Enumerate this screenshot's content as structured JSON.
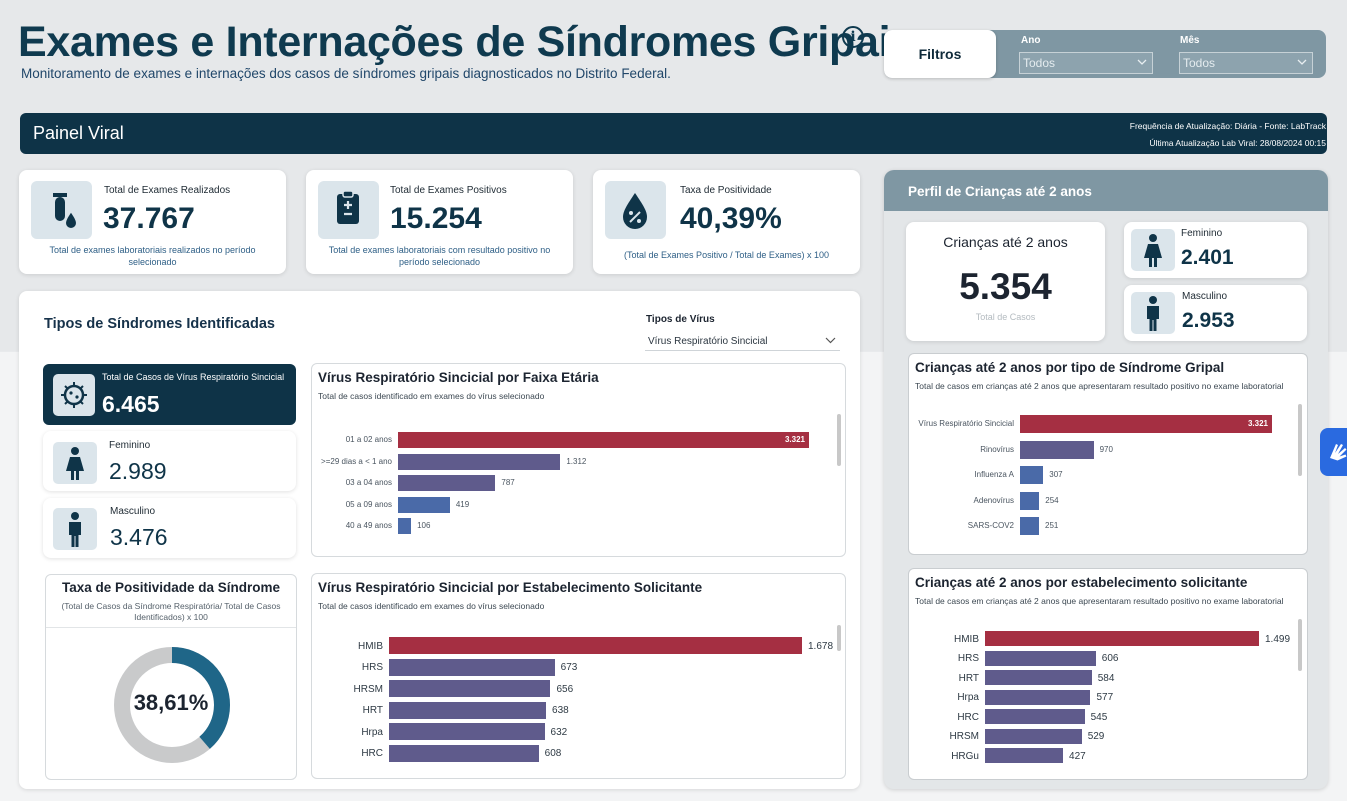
{
  "header": {
    "title": "Exames e Internações de Síndromes Gripais",
    "info_icon": "i",
    "subtitle": "Monitoramento de exames e internações dos casos de síndromes gripais diagnosticados no Distrito Federal."
  },
  "filters": {
    "button_label": "Filtros",
    "ano_label": "Ano",
    "ano_value": "Todos",
    "mes_label": "Mês",
    "mes_value": "Todos"
  },
  "banner": {
    "title": "Painel Viral",
    "line1": "Frequência de Atualização: Diária - Fonte: LabTrack",
    "line2": "Última Atualização Lab Viral: 28/08/2024 00:15"
  },
  "kpis": [
    {
      "label": "Total de Exames Realizados",
      "value": "37.767",
      "desc": "Total de exames laboratoriais realizados no período selecionado",
      "icon": "test-tube-drop-icon"
    },
    {
      "label": "Total de Exames Positivos",
      "value": "15.254",
      "desc": "Total de exames laboratoriais com resultado positivo no período selecionado",
      "icon": "clipboard-plus-minus-icon"
    },
    {
      "label": "Taxa de Positividade",
      "value": "40,39%",
      "desc": "(Total de Exames Positivo / Total de Exames) x 100",
      "icon": "percent-drop-icon"
    }
  ],
  "syndromes": {
    "title": "Tipos de Síndromes Identificadas",
    "virus_filter_label": "Tipos de Vírus",
    "virus_filter_value": "Vírus Respiratório Sincicial",
    "total_label": "Total de Casos de Vírus Respiratório Sincicial",
    "total_value": "6.465",
    "female_label": "Feminino",
    "female_value": "2.989",
    "male_label": "Masculino",
    "male_value": "3.476",
    "positivity_title": "Taxa de Positividade da Síndrome",
    "positivity_sub": "(Total de Casos da Síndrome Respiratória/ Total de Casos Identificados) x 100",
    "positivity_value": "38,61%",
    "positivity_fraction": 0.3861
  },
  "children": {
    "panel_title": "Perfil de Crianças até 2 anos",
    "total_title": "Crianças até 2 anos",
    "total_value": "5.354",
    "total_caption": "Total de Casos",
    "female_label": "Feminino",
    "female_value": "2.401",
    "male_label": "Masculino",
    "male_value": "2.953"
  },
  "colors": {
    "highlight_bar": "#a52f42",
    "bar_purple": "#5f5b8c",
    "bar_blue": "#4a6aa8",
    "donut_fill": "#1f6688",
    "donut_rest": "#c9cacb",
    "dark_navy": "#0e3347"
  },
  "chart_data": [
    {
      "type": "bar",
      "orientation": "horizontal",
      "title": "Vírus Respiratório Sincicial por Faixa Etária",
      "subtitle": "Total de casos identificado em exames do vírus selecionado",
      "categories": [
        "01 a 02 anos",
        ">=29 dias a < 1 ano",
        "03 a 04 anos",
        "05 a 09 anos",
        "40 a 49 anos"
      ],
      "values": [
        3321,
        1312,
        787,
        419,
        106
      ],
      "labels": [
        "3.321",
        "1.312",
        "787",
        "419",
        "106"
      ]
    },
    {
      "type": "bar",
      "orientation": "horizontal",
      "title": "Vírus Respiratório Sincicial por Estabelecimento Solicitante",
      "subtitle": "Total de casos identificado em exames do vírus selecionado",
      "categories": [
        "HMIB",
        "HRS",
        "HRSM",
        "HRT",
        "Hrpa",
        "HRC"
      ],
      "values": [
        1678,
        673,
        656,
        638,
        632,
        608
      ],
      "labels": [
        "1.678",
        "673",
        "656",
        "638",
        "632",
        "608"
      ]
    },
    {
      "type": "pie",
      "title": "Taxa de Positividade da Síndrome",
      "values": [
        38.61,
        61.39
      ]
    },
    {
      "type": "bar",
      "orientation": "horizontal",
      "title": "Crianças até 2 anos por tipo de Síndrome Gripal",
      "subtitle": "Total de casos em crianças até 2 anos que apresentaram resultado positivo no exame laboratorial",
      "categories": [
        "Vírus Respiratório Sincicial",
        "Rinovírus",
        "Influenza A",
        "Adenovírus",
        "SARS-COV2"
      ],
      "values": [
        3321,
        970,
        307,
        254,
        251
      ],
      "labels": [
        "3.321",
        "970",
        "307",
        "254",
        "251"
      ]
    },
    {
      "type": "bar",
      "orientation": "horizontal",
      "title": "Crianças até 2 anos por estabelecimento solicitante",
      "subtitle": "Total de casos em crianças até 2 anos que apresentaram resultado positivo no exame laboratorial",
      "categories": [
        "HMIB",
        "HRS",
        "HRT",
        "Hrpa",
        "HRC",
        "HRSM",
        "HRGu"
      ],
      "values": [
        1499,
        606,
        584,
        577,
        545,
        529,
        427
      ],
      "labels": [
        "1.499",
        "606",
        "584",
        "577",
        "545",
        "529",
        "427"
      ]
    }
  ]
}
